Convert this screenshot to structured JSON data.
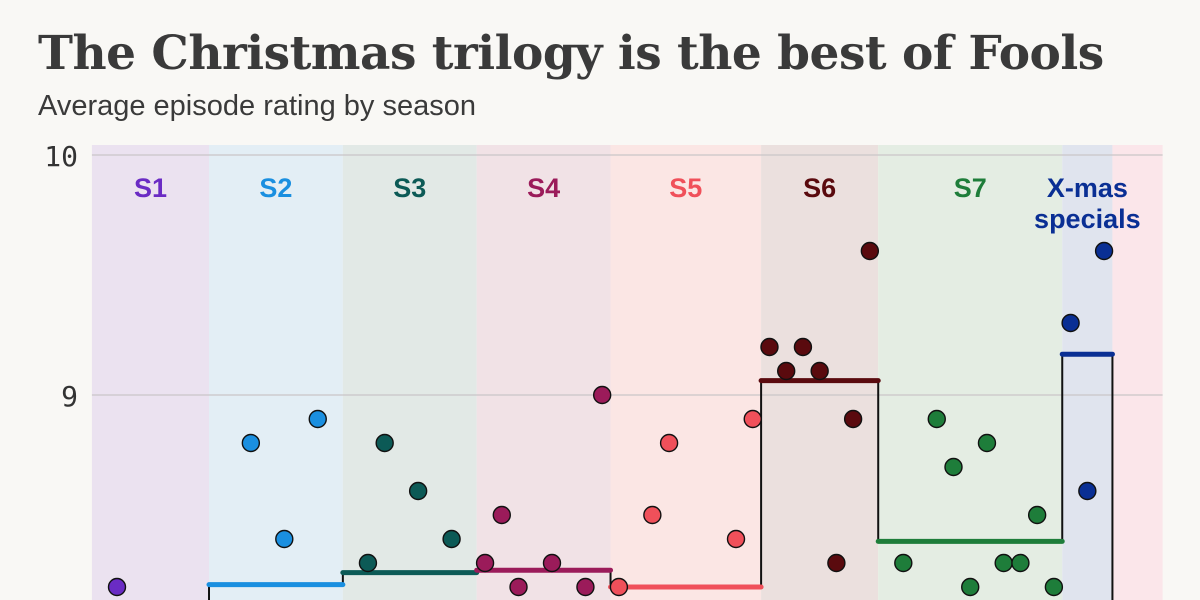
{
  "title": "The Christmas trilogy is the best of Fools",
  "subtitle": "Average episode rating by season",
  "chart_data": {
    "type": "scatter",
    "title": "The Christmas trilogy is the best of Fools",
    "subtitle": "Average episode rating by season",
    "xlabel": "",
    "ylabel": "",
    "ylim": [
      8.146,
      10
    ],
    "xlim": [
      -0.5,
      63.5
    ],
    "yticks": [
      "10",
      "9"
    ],
    "grid": true,
    "seasons": [
      {
        "name": "S1",
        "color": "#6a2bc4",
        "band": "#ebe2f0",
        "range": [
          -0.5,
          6.5
        ],
        "mean": null,
        "episodes": [
          1
        ],
        "ratings": [
          8.2
        ]
      },
      {
        "name": "S2",
        "color": "#1a8fe0",
        "band": "#e3eef5",
        "range": [
          6.5,
          14.5
        ],
        "mean": 8.21,
        "episodes": [
          9,
          11,
          13
        ],
        "ratings": [
          8.8,
          8.4,
          8.9
        ]
      },
      {
        "name": "S3",
        "color": "#0c5a56",
        "band": "#e2e9e6",
        "range": [
          14.5,
          22.5
        ],
        "mean": 8.26,
        "episodes": [
          16,
          17,
          19,
          21
        ],
        "ratings": [
          8.3,
          8.8,
          8.6,
          8.4
        ]
      },
      {
        "name": "S4",
        "color": "#9b1b5a",
        "band": "#f1e2e6",
        "range": [
          22.5,
          30.5
        ],
        "mean": 8.27,
        "episodes": [
          23,
          24,
          25,
          27,
          29,
          30
        ],
        "ratings": [
          8.3,
          8.5,
          8.2,
          8.3,
          8.2,
          9.0
        ]
      },
      {
        "name": "S5",
        "color": "#f0505a",
        "band": "#fbe6e4",
        "range": [
          30.5,
          39.5
        ],
        "mean": 8.2,
        "episodes": [
          31,
          33,
          34,
          38,
          39
        ],
        "ratings": [
          8.2,
          8.5,
          8.8,
          8.4,
          8.9
        ]
      },
      {
        "name": "S6",
        "color": "#5a0a0e",
        "band": "#ebe0de",
        "range": [
          39.5,
          46.5
        ],
        "mean": 9.06,
        "episodes": [
          40,
          41,
          42,
          43,
          44,
          45,
          46
        ],
        "ratings": [
          9.2,
          9.1,
          9.2,
          9.1,
          8.3,
          8.9,
          9.6
        ]
      },
      {
        "name": "S7",
        "color": "#1e7d3a",
        "band": "#e4ede3",
        "range": [
          46.5,
          57.5
        ],
        "mean": 8.39,
        "episodes": [
          48,
          50,
          51,
          52,
          53,
          54,
          55,
          56,
          57
        ],
        "ratings": [
          8.3,
          8.9,
          8.7,
          8.2,
          8.8,
          8.3,
          8.3,
          8.5,
          8.2
        ]
      },
      {
        "name": "X-mas specials",
        "color": "#0a2f94",
        "band": "#e0e4ee",
        "range": [
          57.5,
          60.5
        ],
        "mean": 9.17,
        "episodes": [
          58,
          59,
          60
        ],
        "ratings": [
          9.3,
          8.6,
          9.6
        ]
      },
      {
        "name": "",
        "color": "#f0505a",
        "band": "#fbe6ea",
        "range": [
          60.5,
          63.5
        ],
        "mean": null,
        "episodes": [],
        "ratings": []
      }
    ]
  }
}
